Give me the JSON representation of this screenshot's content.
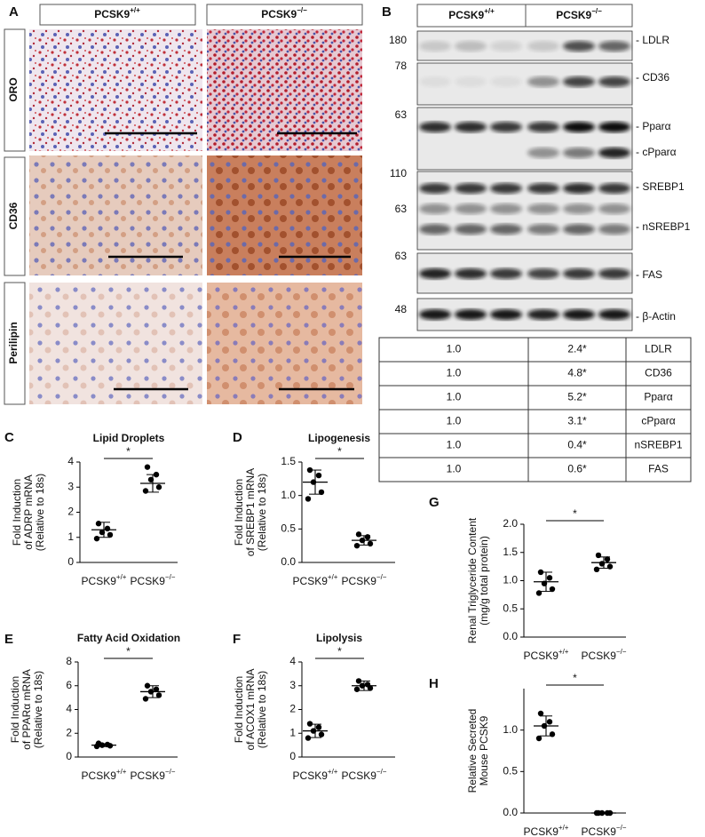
{
  "figure": {
    "panel_letters": [
      "A",
      "B",
      "C",
      "D",
      "E",
      "F",
      "G",
      "H"
    ],
    "panel_a": {
      "columns": [
        {
          "base": "PCSK9",
          "sup": "+/+"
        },
        {
          "base": "PCSK9",
          "sup": "−/−"
        }
      ],
      "rows": [
        "ORO",
        "CD36",
        "Perilipin"
      ]
    },
    "panel_b": {
      "columns": [
        {
          "base": "PCSK9",
          "sup": "+/+"
        },
        {
          "base": "PCSK9",
          "sup": "−/−"
        }
      ],
      "markers": [
        180,
        78,
        63,
        110,
        63,
        63,
        48
      ],
      "bands": [
        "- LDLR",
        "- CD36",
        "- Pparα",
        "- cPparα",
        "- SREBP1",
        "- nSREBP1",
        "- FAS",
        "- β-Actin"
      ],
      "table": [
        [
          "1.0",
          "2.4*",
          "LDLR"
        ],
        [
          "1.0",
          "4.8*",
          "CD36"
        ],
        [
          "1.0",
          "5.2*",
          "Pparα"
        ],
        [
          "1.0",
          "3.1*",
          "cPparα"
        ],
        [
          "1.0",
          "0.4*",
          "nSREBP1"
        ],
        [
          "1.0",
          "0.6*",
          "FAS"
        ]
      ]
    }
  },
  "chart_data": [
    {
      "type": "strip",
      "title": "Lipid Droplets",
      "ylabel": [
        "Fold Induction",
        "of ADRP mRNA",
        "(Relative to 18s)"
      ],
      "categories": [
        {
          "base": "PCSK9",
          "sup": "+/+"
        },
        {
          "base": "PCSK9",
          "sup": "−/−"
        }
      ],
      "points": [
        [
          1.55,
          1.35,
          1.2,
          1.1,
          0.95
        ],
        [
          3.8,
          3.5,
          3.3,
          3.0,
          2.85
        ]
      ],
      "mean": [
        1.3,
        3.15
      ],
      "sd": [
        0.3,
        0.35
      ],
      "color": "#000000",
      "ylim": [
        0,
        4
      ],
      "yticks": [
        0,
        1,
        2,
        3,
        4
      ],
      "annotation": "*"
    },
    {
      "type": "strip",
      "title": "Lipogenesis",
      "ylabel": [
        "Fold Induction",
        "of SREBP1 mRNA",
        "(Relative to 18s)"
      ],
      "categories": [
        {
          "base": "PCSK9",
          "sup": "+/+"
        },
        {
          "base": "PCSK9",
          "sup": "−/−"
        }
      ],
      "points": [
        [
          1.38,
          1.3,
          1.2,
          1.05,
          0.95
        ],
        [
          0.42,
          0.38,
          0.33,
          0.28,
          0.25
        ]
      ],
      "mean": [
        1.2,
        0.33
      ],
      "sd": [
        0.18,
        0.07
      ],
      "color": "#000000",
      "ylim": [
        0,
        1.5
      ],
      "yticks": [
        {
          "value": 0,
          "label": "0.0"
        },
        0.5,
        {
          "value": 1,
          "label": "1.0"
        },
        1.5
      ],
      "annotation": "*"
    },
    {
      "type": "strip",
      "title": "Fatty Acid Oxidation",
      "ylabel": [
        "Fold Induction",
        "of PPARα mRNA",
        "(Relative to 18s)"
      ],
      "categories": [
        {
          "base": "PCSK9",
          "sup": "+/+"
        },
        {
          "base": "PCSK9",
          "sup": "−/−"
        }
      ],
      "points": [
        [
          1.15,
          1.05,
          1.0,
          0.95,
          0.9
        ],
        [
          6.0,
          5.7,
          5.5,
          5.2,
          4.9
        ]
      ],
      "mean": [
        1.0,
        5.5
      ],
      "sd": [
        0.12,
        0.5
      ],
      "color": "#000000",
      "ylim": [
        0,
        8
      ],
      "yticks": [
        0,
        2,
        4,
        6,
        8
      ],
      "annotation": "*"
    },
    {
      "type": "strip",
      "title": "Lipolysis",
      "ylabel": [
        "Fold Induction",
        "of ACOX1 mRNA",
        "(Relative to 18s)"
      ],
      "categories": [
        {
          "base": "PCSK9",
          "sup": "+/+"
        },
        {
          "base": "PCSK9",
          "sup": "−/−"
        }
      ],
      "points": [
        [
          1.4,
          1.25,
          1.1,
          0.95,
          0.8
        ],
        [
          3.2,
          3.05,
          3.0,
          2.9,
          2.85
        ]
      ],
      "mean": [
        1.1,
        3.0
      ],
      "sd": [
        0.28,
        0.2
      ],
      "color": "#000000",
      "ylim": [
        0,
        4
      ],
      "yticks": [
        0,
        1,
        2,
        3,
        4
      ],
      "annotation": "*"
    },
    {
      "type": "strip",
      "ylabel": [
        "Renal Triglyceride Content",
        "(mg/g total protein)"
      ],
      "categories": [
        {
          "base": "PCSK9",
          "sup": "+/+"
        },
        {
          "base": "PCSK9",
          "sup": "−/−"
        }
      ],
      "points": [
        [
          1.15,
          1.05,
          0.95,
          0.85,
          0.78
        ],
        [
          1.45,
          1.38,
          1.3,
          1.25,
          1.2
        ]
      ],
      "mean": [
        0.98,
        1.32
      ],
      "sd": [
        0.17,
        0.1
      ],
      "color": "#000000",
      "ylim": [
        0,
        2
      ],
      "yticks": [
        {
          "value": 0,
          "label": "0.0"
        },
        0.5,
        {
          "value": 1,
          "label": "1.0"
        },
        1.5,
        {
          "value": 2,
          "label": "2.0"
        }
      ],
      "annotation": "*"
    },
    {
      "type": "strip",
      "ylabel": [
        "Relative Secreted",
        "Mouse PCSK9"
      ],
      "categories": [
        {
          "base": "PCSK9",
          "sup": "+/+"
        },
        {
          "base": "PCSK9",
          "sup": "−/−"
        }
      ],
      "points": [
        [
          1.2,
          1.1,
          1.05,
          0.95,
          0.9
        ],
        [
          0,
          0,
          0,
          0,
          0
        ]
      ],
      "mean": [
        1.05,
        0
      ],
      "sd": [
        0.12,
        0
      ],
      "color": "#000000",
      "ylim": [
        0,
        1.5
      ],
      "yticks": [
        {
          "value": 0,
          "label": "0.0"
        },
        0.5,
        {
          "value": 1,
          "label": "1.0"
        }
      ],
      "annotation": "*"
    }
  ]
}
